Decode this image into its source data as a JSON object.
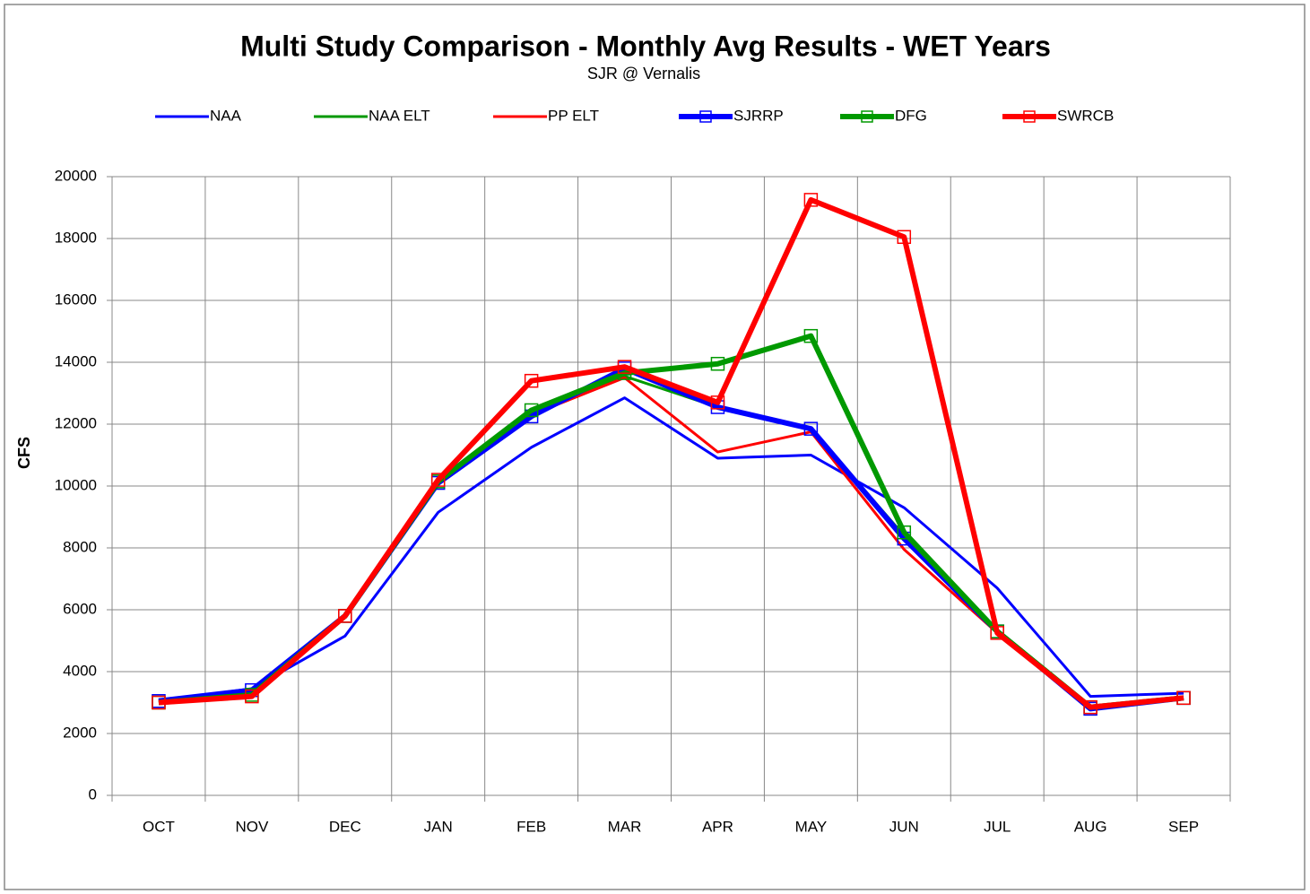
{
  "chart_data": {
    "type": "line",
    "title": "Multi Study Comparison - Monthly Avg Results -  WET Years",
    "subtitle": "SJR @ Vernalis",
    "y_label": "CFS",
    "categories": [
      "OCT",
      "NOV",
      "DEC",
      "JAN",
      "FEB",
      "MAR",
      "APR",
      "MAY",
      "JUN",
      "JUL",
      "AUG",
      "SEP"
    ],
    "series": [
      {
        "name": "NAA",
        "color": "#0000ff",
        "line_width": 3,
        "marker": false,
        "values": [
          3050,
          3450,
          5150,
          9150,
          11250,
          12850,
          10900,
          11000,
          9300,
          6700,
          3200,
          3300
        ]
      },
      {
        "name": "NAA ELT",
        "color": "#009900",
        "line_width": 3,
        "marker": false,
        "values": [
          3000,
          3250,
          5750,
          10050,
          12350,
          13550,
          12550,
          11850,
          8400,
          5300,
          2850,
          3150
        ]
      },
      {
        "name": "PP ELT",
        "color": "#ff0000",
        "line_width": 3,
        "marker": false,
        "values": [
          3000,
          3200,
          5800,
          10150,
          12300,
          13500,
          11100,
          11750,
          7950,
          5250,
          2850,
          3150
        ]
      },
      {
        "name": "SJRRP",
        "color": "#0000ff",
        "line_width": 6,
        "marker": true,
        "values": [
          3050,
          3400,
          5800,
          10100,
          12250,
          13800,
          12550,
          11850,
          8300,
          5300,
          2800,
          3150
        ]
      },
      {
        "name": "DFG",
        "color": "#009900",
        "line_width": 6,
        "marker": true,
        "values": [
          3000,
          3250,
          5800,
          10150,
          12450,
          13650,
          13950,
          14850,
          8500,
          5300,
          2850,
          3150
        ]
      },
      {
        "name": "SWRCB",
        "color": "#ff0000",
        "line_width": 6,
        "marker": true,
        "values": [
          3000,
          3200,
          5800,
          10200,
          13400,
          13850,
          12700,
          19250,
          18050,
          5250,
          2850,
          3150
        ]
      }
    ],
    "ylim": [
      0,
      20000
    ],
    "yticks": [
      0,
      2000,
      4000,
      6000,
      8000,
      10000,
      12000,
      14000,
      16000,
      18000,
      20000
    ],
    "grid": true,
    "legend": "top"
  }
}
